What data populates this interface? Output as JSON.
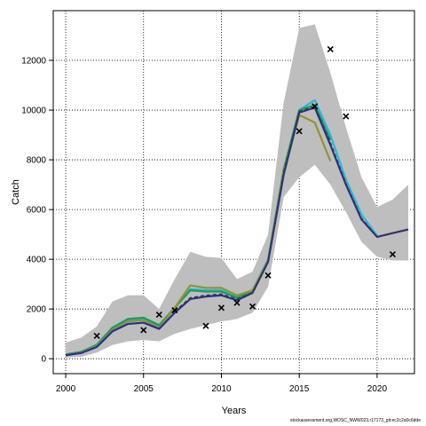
{
  "chart_data": {
    "type": "line",
    "xlabel": "Years",
    "ylabel": "Catch",
    "xlim": [
      1999.2,
      2022.4
    ],
    "ylim": [
      -600,
      14000
    ],
    "x_ticks": [
      2000,
      2005,
      2010,
      2015,
      2020
    ],
    "y_ticks": [
      0,
      2000,
      4000,
      6000,
      8000,
      10000,
      12000
    ],
    "grid": true,
    "colors": {
      "band": "#bebebe",
      "cyan": "#29b8d8",
      "green": "#1f9a5a",
      "olive": "#8f9438",
      "navy": "#2b2f8c",
      "median": "#3a3a3a",
      "obs": "#000000"
    },
    "uncertainty_band": {
      "x": [
        2000,
        2001,
        2002,
        2003,
        2004,
        2005,
        2006,
        2007,
        2008,
        2009,
        2010,
        2011,
        2012,
        2013,
        2014,
        2015,
        2016,
        2017,
        2018,
        2019,
        2020,
        2021,
        2022
      ],
      "upper": [
        650,
        850,
        1300,
        2300,
        2550,
        2550,
        2000,
        3200,
        4300,
        4100,
        4050,
        3200,
        3500,
        5000,
        10300,
        13300,
        13450,
        11500,
        9300,
        7300,
        6100,
        6400,
        7000
      ],
      "lower": [
        50,
        80,
        250,
        550,
        700,
        750,
        700,
        1000,
        1200,
        1350,
        1500,
        1600,
        1850,
        2900,
        6500,
        7300,
        7800,
        7000,
        5900,
        4700,
        4100,
        3950,
        3950
      ]
    },
    "series": [
      {
        "color_key": "cyan",
        "x": [
          2000,
          2001,
          2002,
          2003,
          2004,
          2005,
          2006,
          2007,
          2008,
          2009,
          2010,
          2011,
          2012,
          2013,
          2014,
          2015,
          2016,
          2017,
          2018,
          2019,
          2020
        ],
        "values": [
          170,
          270,
          520,
          1200,
          1550,
          1600,
          1300,
          2050,
          2800,
          2750,
          2750,
          2500,
          2750,
          4000,
          7600,
          10000,
          10400,
          9000,
          7200,
          5800,
          4950
        ]
      },
      {
        "color_key": "green",
        "x": [
          2000,
          2001,
          2002,
          2003,
          2004,
          2005,
          2006,
          2007,
          2008,
          2009,
          2010,
          2011,
          2012,
          2013,
          2014,
          2015,
          2016,
          2017
        ],
        "values": [
          170,
          280,
          560,
          1250,
          1600,
          1650,
          1350,
          2050,
          2750,
          2700,
          2700,
          2450,
          2700,
          3950,
          7600,
          10000,
          10200,
          8800
        ]
      },
      {
        "color_key": "olive",
        "x": [
          2000,
          2001,
          2002,
          2003,
          2004,
          2005,
          2006,
          2007,
          2008,
          2009,
          2010,
          2011,
          2012,
          2013,
          2014,
          2015,
          2016,
          2017
        ],
        "values": [
          150,
          250,
          500,
          1150,
          1500,
          1550,
          1250,
          2050,
          2950,
          2850,
          2850,
          2550,
          2750,
          3950,
          7500,
          9800,
          9500,
          7950
        ]
      },
      {
        "color_key": "navy",
        "x": [
          2000,
          2001,
          2002,
          2003,
          2004,
          2005,
          2006,
          2007,
          2008,
          2009,
          2010,
          2011,
          2012,
          2013,
          2014,
          2015,
          2016,
          2017,
          2018,
          2019,
          2020,
          2021,
          2022
        ],
        "values": [
          140,
          230,
          470,
          1100,
          1400,
          1450,
          1200,
          1850,
          2400,
          2500,
          2550,
          2350,
          2650,
          3900,
          7400,
          9900,
          10100,
          8600,
          7000,
          5600,
          4900,
          5050,
          5200
        ]
      },
      {
        "color_key": "median",
        "dashed": true,
        "x": [
          2007,
          2008,
          2009,
          2010,
          2011,
          2012,
          2013,
          2014,
          2015,
          2016,
          2017,
          2018,
          2019,
          2020,
          2021,
          2022
        ],
        "values": [
          1900,
          2450,
          2550,
          2600,
          2400,
          2650,
          3900,
          7500,
          9950,
          10150,
          8700,
          7050,
          5650,
          4900,
          5050,
          5200
        ]
      }
    ],
    "observed": {
      "x": [
        2002,
        2005,
        2006,
        2007,
        2009,
        2010,
        2011,
        2012,
        2013,
        2015,
        2016,
        2017,
        2018,
        2021
      ],
      "values": [
        920,
        1150,
        1770,
        1950,
        1320,
        2050,
        2250,
        2100,
        3350,
        9150,
        10150,
        12450,
        9750,
        4200
      ]
    }
  },
  "footer": {
    "text": "stockassessment.org,WOSC_NWW023,r17173_git:ec2c2a0c6dde"
  }
}
